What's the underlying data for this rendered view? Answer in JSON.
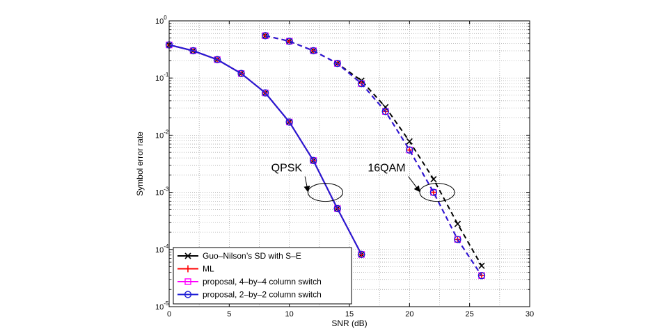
{
  "chart_data": {
    "type": "line",
    "xlabel": "SNR (dB)",
    "ylabel": "Symbol error rate",
    "xlim": [
      0,
      30
    ],
    "ylim": [
      1e-05,
      1
    ],
    "yscale": "log",
    "grid": true,
    "legend_position": "bottom-left",
    "xticks": [
      "0",
      "5",
      "10",
      "15",
      "20",
      "25",
      "30"
    ],
    "yticks": [
      {
        "base": "10",
        "exp": "0",
        "value": 1
      },
      {
        "base": "10",
        "exp": "-1",
        "value": 0.1
      },
      {
        "base": "10",
        "exp": "-2",
        "value": 0.01
      },
      {
        "base": "10",
        "exp": "-3",
        "value": 0.001
      },
      {
        "base": "10",
        "exp": "-4",
        "value": 0.0001
      },
      {
        "base": "10",
        "exp": "-5",
        "value": 1e-05
      }
    ],
    "series": [
      {
        "name": "Guo–Nilson’s SD with S–E",
        "color": "#000000",
        "marker": "x",
        "linestyle": "solid",
        "segments": [
          {
            "linestyle": "solid",
            "x": [
              0,
              2,
              4,
              6,
              8,
              10,
              12,
              14,
              16
            ],
            "y": [
              0.38,
              0.3,
              0.21,
              0.12,
              0.055,
              0.017,
              0.0036,
              0.00052,
              8.2e-05
            ]
          },
          {
            "linestyle": "dashed",
            "x": [
              8,
              10,
              12,
              14,
              16,
              18,
              20,
              22,
              24,
              26
            ],
            "y": [
              0.55,
              0.44,
              0.3,
              0.18,
              0.09,
              0.031,
              0.0078,
              0.0017,
              0.00028,
              5.2e-05
            ]
          }
        ]
      },
      {
        "name": "ML",
        "color": "#ff0000",
        "marker": "+",
        "linestyle": "solid",
        "segments": [
          {
            "linestyle": "solid",
            "x": [
              0,
              2,
              4,
              6,
              8,
              10,
              12,
              14,
              16
            ],
            "y": [
              0.38,
              0.3,
              0.21,
              0.12,
              0.055,
              0.017,
              0.0036,
              0.00052,
              8.2e-05
            ]
          },
          {
            "linestyle": "dashed",
            "x": [
              8,
              10,
              12,
              14,
              16,
              18,
              20,
              22,
              24,
              26
            ],
            "y": [
              0.55,
              0.44,
              0.3,
              0.18,
              0.08,
              0.026,
              0.0055,
              0.001,
              0.00015,
              3.5e-05
            ]
          }
        ]
      },
      {
        "name": "proposal, 4–by–4 column switch",
        "color": "#ff00ff",
        "marker": "square",
        "linestyle": "solid",
        "segments": [
          {
            "linestyle": "solid",
            "x": [
              0,
              2,
              4,
              6,
              8,
              10,
              12,
              14,
              16
            ],
            "y": [
              0.38,
              0.3,
              0.21,
              0.12,
              0.055,
              0.017,
              0.0036,
              0.00052,
              8.2e-05
            ]
          },
          {
            "linestyle": "dashed",
            "x": [
              8,
              10,
              12,
              14,
              16,
              18,
              20,
              22,
              24,
              26
            ],
            "y": [
              0.55,
              0.44,
              0.3,
              0.18,
              0.08,
              0.026,
              0.0055,
              0.001,
              0.00015,
              3.5e-05
            ]
          }
        ]
      },
      {
        "name": "proposal, 2–by–2 column switch",
        "color": "#1f1fd6",
        "marker": "circle",
        "linestyle": "solid",
        "segments": [
          {
            "linestyle": "solid",
            "x": [
              0,
              2,
              4,
              6,
              8,
              10,
              12,
              14,
              16
            ],
            "y": [
              0.38,
              0.3,
              0.21,
              0.12,
              0.055,
              0.017,
              0.0036,
              0.00052,
              8.2e-05
            ]
          },
          {
            "linestyle": "dashed",
            "x": [
              8,
              10,
              12,
              14,
              16,
              18,
              20,
              22,
              24,
              26
            ],
            "y": [
              0.55,
              0.44,
              0.3,
              0.18,
              0.08,
              0.026,
              0.0055,
              0.001,
              0.00015,
              3.5e-05
            ]
          }
        ]
      }
    ],
    "annotations": [
      {
        "text": "QPSK",
        "ellipse_at": {
          "x": 13.0,
          "y": 0.001
        },
        "arrow_from": {
          "x": 11.3,
          "y": 0.0019
        }
      },
      {
        "text": "16QAM",
        "ellipse_at": {
          "x": 22.3,
          "y": 0.001
        },
        "arrow_from": {
          "x": 19.9,
          "y": 0.0019
        }
      }
    ]
  }
}
